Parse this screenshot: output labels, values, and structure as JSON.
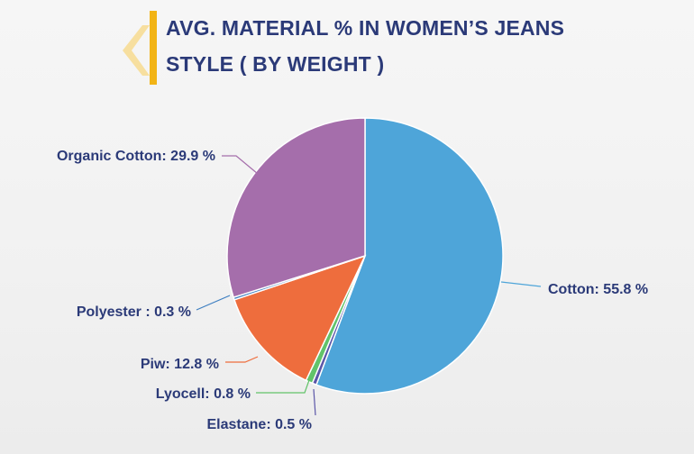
{
  "title": {
    "line1": "AVG. MATERIAL % IN WOMEN’S JEANS",
    "line2": "STYLE ( BY WEIGHT )"
  },
  "colors": {
    "title": "#2b3a78",
    "accent": "#f2b416"
  },
  "chart_data": {
    "type": "pie",
    "title": "AVG. MATERIAL % IN WOMEN’S JEANS STYLE ( BY WEIGHT )",
    "slices": [
      {
        "name": "Cotton",
        "value": 55.8,
        "color": "#4ea5d9",
        "label": "Cotton: 55.8 %"
      },
      {
        "name": "Elastane",
        "value": 0.5,
        "color": "#5b56a8",
        "label": "Elastane: 0.5 %"
      },
      {
        "name": "Lyocell",
        "value": 0.8,
        "color": "#62c36a",
        "label": "Lyocell: 0.8 %"
      },
      {
        "name": "Piw",
        "value": 12.8,
        "color": "#ee6d3d",
        "label": "Piw: 12.8 %"
      },
      {
        "name": "Polyester",
        "value": 0.3,
        "color": "#3e7fc1",
        "label": "Polyester : 0.3 %"
      },
      {
        "name": "Organic Cotton",
        "value": 29.9,
        "color": "#a56eab",
        "label": "Organic Cotton: 29.9 %"
      }
    ],
    "legend": "none",
    "start": "12 o'clock, clockwise"
  }
}
